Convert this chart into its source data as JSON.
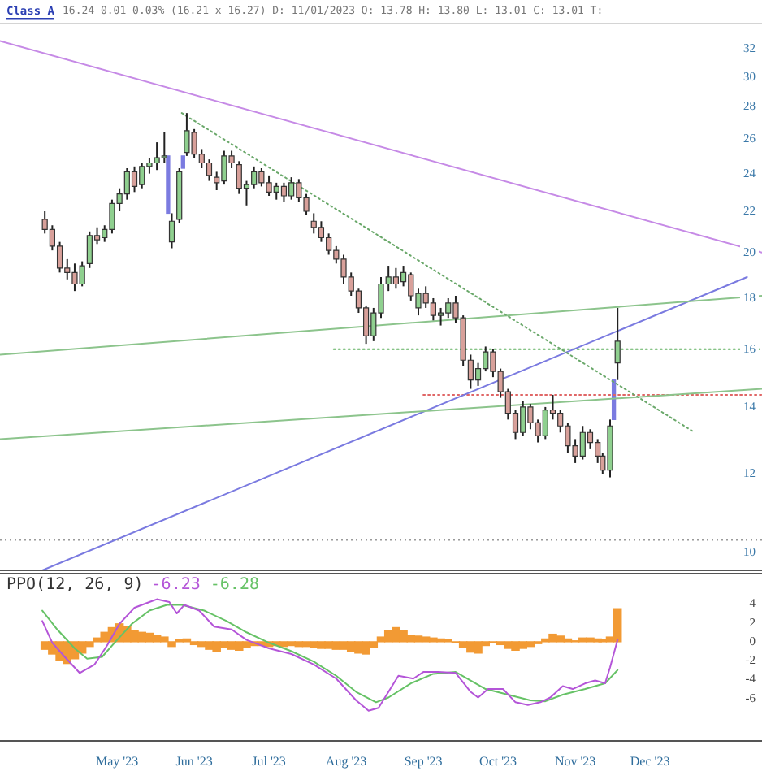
{
  "chart_data": [
    {
      "type": "candlestick",
      "title": "Class A",
      "subtitle": "16.24 0.01 0.03% (16.21 x 16.27) D: 11/01/2023 O: 13.78 H: 13.80 L: 13.01 C: 13.01 T:",
      "log": true,
      "tick_labels": "y",
      "xlim": [
        "2023-03-15",
        "2024-01-15"
      ],
      "ylim": [
        9.6,
        34
      ],
      "yticks": [
        10,
        12,
        14,
        16,
        18,
        20,
        22,
        24,
        26,
        28,
        30,
        32
      ],
      "ref_lines": [
        {
          "axis": "y",
          "value": 10.3,
          "color": "#9a9a9a",
          "line_style": "dotted"
        }
      ],
      "series": [
        {
          "x": [
            "2023-04-02",
            "2023-04-05",
            "2023-04-08",
            "2023-04-11",
            "2023-04-14",
            "2023-04-17",
            "2023-04-20",
            "2023-04-23",
            "2023-04-26",
            "2023-04-29",
            "2023-05-02",
            "2023-05-05",
            "2023-05-08",
            "2023-05-11",
            "2023-05-14",
            "2023-05-17",
            "2023-05-20",
            "2023-05-23",
            "2023-05-26",
            "2023-05-29",
            "2023-06-01",
            "2023-06-04",
            "2023-06-07",
            "2023-06-10",
            "2023-06-13",
            "2023-06-16",
            "2023-06-19",
            "2023-06-22",
            "2023-06-25",
            "2023-06-28",
            "2023-07-01",
            "2023-07-04",
            "2023-07-07",
            "2023-07-10",
            "2023-07-13",
            "2023-07-16",
            "2023-07-19",
            "2023-07-22",
            "2023-07-25",
            "2023-07-28",
            "2023-07-31",
            "2023-08-03",
            "2023-08-06",
            "2023-08-09",
            "2023-08-12",
            "2023-08-15",
            "2023-08-18",
            "2023-08-21",
            "2023-08-24",
            "2023-08-27",
            "2023-08-30",
            "2023-09-02",
            "2023-09-05",
            "2023-09-08",
            "2023-09-11",
            "2023-09-14",
            "2023-09-17",
            "2023-09-20",
            "2023-09-23",
            "2023-09-26",
            "2023-09-29",
            "2023-10-02",
            "2023-10-05",
            "2023-10-08",
            "2023-10-11",
            "2023-10-14",
            "2023-10-17",
            "2023-10-20",
            "2023-10-23",
            "2023-10-26",
            "2023-10-29",
            "2023-11-01",
            "2023-11-04",
            "2023-11-07",
            "2023-11-10",
            "2023-11-12",
            "2023-11-15",
            "2023-11-18"
          ],
          "ohlc": [
            [
              21.6,
              22.0,
              20.9,
              21.1
            ],
            [
              21.1,
              21.3,
              20.1,
              20.3
            ],
            [
              20.3,
              20.5,
              19.1,
              19.3
            ],
            [
              19.3,
              19.7,
              18.8,
              19.1
            ],
            [
              19.1,
              19.5,
              18.3,
              18.6
            ],
            [
              18.6,
              19.6,
              18.5,
              19.4
            ],
            [
              19.5,
              21.0,
              19.3,
              20.8
            ],
            [
              20.8,
              21.2,
              20.4,
              20.6
            ],
            [
              20.7,
              21.3,
              20.5,
              21.1
            ],
            [
              21.1,
              22.6,
              20.9,
              22.4
            ],
            [
              22.4,
              23.2,
              22.0,
              22.9
            ],
            [
              22.9,
              24.3,
              22.6,
              24.1
            ],
            [
              24.1,
              24.4,
              23.0,
              23.3
            ],
            [
              23.4,
              24.6,
              23.2,
              24.4
            ],
            [
              24.4,
              24.9,
              24.0,
              24.6
            ],
            [
              24.6,
              25.8,
              24.2,
              24.9
            ],
            [
              24.9,
              26.4,
              24.6,
              25.0
            ],
            [
              20.5,
              21.9,
              20.2,
              21.5
            ],
            [
              21.6,
              24.3,
              21.4,
              24.1
            ],
            [
              25.2,
              27.6,
              25.0,
              26.5
            ],
            [
              26.4,
              26.6,
              24.9,
              25.1
            ],
            [
              25.1,
              25.4,
              24.3,
              24.6
            ],
            [
              24.6,
              24.8,
              23.6,
              23.9
            ],
            [
              23.8,
              24.1,
              23.1,
              23.5
            ],
            [
              23.6,
              25.3,
              23.4,
              25.0
            ],
            [
              25.0,
              25.3,
              24.3,
              24.6
            ],
            [
              24.5,
              24.7,
              22.9,
              23.2
            ],
            [
              23.2,
              23.6,
              22.3,
              23.4
            ],
            [
              23.4,
              24.4,
              23.2,
              24.1
            ],
            [
              24.1,
              24.3,
              23.3,
              23.5
            ],
            [
              23.5,
              23.9,
              22.8,
              23.0
            ],
            [
              23.0,
              23.5,
              22.6,
              23.3
            ],
            [
              23.3,
              23.5,
              22.5,
              22.8
            ],
            [
              22.8,
              23.8,
              22.6,
              23.5
            ],
            [
              23.5,
              23.7,
              22.5,
              22.7
            ],
            [
              22.7,
              22.9,
              21.8,
              22.0
            ],
            [
              21.5,
              21.9,
              20.9,
              21.2
            ],
            [
              21.2,
              21.5,
              20.5,
              20.7
            ],
            [
              20.7,
              20.9,
              19.9,
              20.1
            ],
            [
              20.1,
              20.3,
              19.5,
              19.7
            ],
            [
              19.7,
              19.9,
              18.6,
              18.9
            ],
            [
              18.9,
              19.1,
              18.1,
              18.3
            ],
            [
              18.3,
              18.4,
              17.4,
              17.6
            ],
            [
              17.6,
              17.7,
              16.2,
              16.5
            ],
            [
              16.5,
              17.6,
              16.3,
              17.4
            ],
            [
              17.4,
              18.9,
              17.2,
              18.6
            ],
            [
              18.6,
              19.4,
              18.3,
              18.9
            ],
            [
              18.9,
              19.3,
              18.4,
              18.6
            ],
            [
              18.7,
              19.4,
              18.5,
              19.1
            ],
            [
              19.0,
              19.1,
              17.9,
              18.1
            ],
            [
              17.6,
              18.4,
              17.3,
              18.2
            ],
            [
              18.2,
              18.5,
              17.6,
              17.8
            ],
            [
              17.8,
              18.0,
              17.1,
              17.3
            ],
            [
              17.3,
              17.6,
              16.9,
              17.4
            ],
            [
              17.4,
              18.0,
              17.2,
              17.8
            ],
            [
              17.8,
              18.1,
              17.0,
              17.2
            ],
            [
              17.2,
              17.3,
              15.4,
              15.6
            ],
            [
              15.6,
              15.8,
              14.6,
              14.9
            ],
            [
              14.9,
              15.5,
              14.7,
              15.3
            ],
            [
              15.3,
              16.1,
              15.2,
              15.9
            ],
            [
              15.9,
              16.0,
              15.0,
              15.2
            ],
            [
              15.2,
              15.3,
              14.3,
              14.5
            ],
            [
              14.5,
              14.6,
              13.6,
              13.8
            ],
            [
              13.8,
              13.9,
              13.0,
              13.2
            ],
            [
              13.2,
              14.2,
              13.1,
              14.0
            ],
            [
              14.0,
              14.1,
              13.3,
              13.5
            ],
            [
              13.5,
              13.6,
              12.9,
              13.1
            ],
            [
              13.1,
              14.0,
              13.0,
              13.9
            ],
            [
              13.9,
              14.4,
              13.6,
              13.8
            ],
            [
              13.8,
              13.9,
              13.2,
              13.4
            ],
            [
              13.4,
              13.5,
              12.6,
              12.8
            ],
            [
              12.8,
              13.0,
              12.3,
              12.5
            ],
            [
              12.5,
              13.4,
              12.4,
              13.2
            ],
            [
              13.2,
              13.3,
              12.7,
              12.9
            ],
            [
              12.9,
              13.0,
              12.3,
              12.5
            ],
            [
              12.5,
              12.6,
              12.0,
              12.1
            ],
            [
              12.1,
              13.6,
              11.9,
              13.4
            ],
            [
              15.5,
              17.6,
              14.9,
              16.3
            ]
          ],
          "colors": [
            "#d8a09a",
            "#d8a09a",
            "#d8a09a",
            "#d8a09a",
            "#d8a09a",
            "#8fd08f",
            "#8fd08f",
            "#d8a09a",
            "#8fd08f",
            "#8fd08f",
            "#8fd08f",
            "#8fd08f",
            "#d8a09a",
            "#8fd08f",
            "#8fd08f",
            "#8fd08f",
            "#8fd08f",
            "#8fd08f",
            "#8fd08f",
            "#8fd08f",
            "#d8a09a",
            "#d8a09a",
            "#d8a09a",
            "#d8a09a",
            "#8fd08f",
            "#d8a09a",
            "#d8a09a",
            "#8fd08f",
            "#8fd08f",
            "#d8a09a",
            "#d8a09a",
            "#8fd08f",
            "#d8a09a",
            "#8fd08f",
            "#d8a09a",
            "#d8a09a",
            "#d8a09a",
            "#d8a09a",
            "#d8a09a",
            "#d8a09a",
            "#d8a09a",
            "#d8a09a",
            "#d8a09a",
            "#d8a09a",
            "#8fd08f",
            "#8fd08f",
            "#8fd08f",
            "#d8a09a",
            "#8fd08f",
            "#d8a09a",
            "#8fd08f",
            "#d8a09a",
            "#d8a09a",
            "#8fd08f",
            "#8fd08f",
            "#d8a09a",
            "#d8a09a",
            "#d8a09a",
            "#8fd08f",
            "#8fd08f",
            "#d8a09a",
            "#d8a09a",
            "#d8a09a",
            "#d8a09a",
            "#8fd08f",
            "#d8a09a",
            "#d8a09a",
            "#8fd08f",
            "#d8a09a",
            "#d8a09a",
            "#d8a09a",
            "#d8a09a",
            "#8fd08f",
            "#d8a09a",
            "#d8a09a",
            "#d8a09a",
            "#8fd08f",
            "#8fd08f"
          ]
        },
        {
          "type": "bar",
          "color": "#7b7be0",
          "x": [
            "2023-05-21T12:00",
            "2023-05-27T12:00",
            "2023-11-16T12:00"
          ],
          "base": [
            21.9,
            24.3,
            13.6
          ],
          "values": [
            3.1,
            0.7,
            1.3
          ]
        },
        {
          "type": "line",
          "color": "#c68ae6",
          "x": [
            "2023-03-15",
            "2024-01-15"
          ],
          "values": [
            32.6,
            20.0
          ]
        },
        {
          "type": "line",
          "color": "#6aa86a",
          "line_style": "dotted",
          "x": [
            "2023-05-27",
            "2023-12-19"
          ],
          "values": [
            27.6,
            13.2
          ]
        },
        {
          "type": "line",
          "color": "#8cc48c",
          "x": [
            "2023-03-15",
            "2024-01-15"
          ],
          "values": [
            15.8,
            18.1
          ]
        },
        {
          "type": "line",
          "color": "#8cc48c",
          "x": [
            "2023-03-15",
            "2024-01-15"
          ],
          "values": [
            13.0,
            14.6
          ]
        },
        {
          "type": "line",
          "color": "#7a7ae0",
          "x": [
            "2023-04-01",
            "2024-01-09"
          ],
          "values": [
            9.6,
            18.9
          ]
        },
        {
          "type": "line",
          "color": "#5fb05f",
          "line_style": "dotted",
          "x": [
            "2023-07-27",
            "2024-01-15"
          ],
          "values": [
            16.0,
            16.0
          ]
        },
        {
          "type": "line",
          "color": "#e06666",
          "line_style": "dotted",
          "x": [
            "2023-09-01",
            "2024-01-15"
          ],
          "values": [
            14.4,
            14.4
          ]
        }
      ]
    },
    {
      "type": "line",
      "title": "PPO(12, 26, 9)",
      "annotations": [
        "-6.23",
        "-6.28"
      ],
      "xlim": [
        "2023-03-15",
        "2024-01-15"
      ],
      "xticks": [
        {
          "value": "2023-05-01",
          "label": "May '23"
        },
        {
          "value": "2023-06-01",
          "label": "Jun '23"
        },
        {
          "value": "2023-07-01",
          "label": "Jul '23"
        },
        {
          "value": "2023-08-01",
          "label": "Aug '23"
        },
        {
          "value": "2023-09-01",
          "label": "Sep '23"
        },
        {
          "value": "2023-10-01",
          "label": "Oct '23"
        },
        {
          "value": "2023-11-01",
          "label": "Nov '23"
        },
        {
          "value": "2023-12-01",
          "label": "Dec '23"
        }
      ],
      "ylim": [
        -10.5,
        7.3
      ],
      "yticks": [
        -6,
        -4,
        -2,
        0,
        2,
        4
      ],
      "series": [
        {
          "color": "#b455d8",
          "x": [
            "2023-04-01",
            "2023-04-05",
            "2023-04-10",
            "2023-04-16",
            "2023-04-22",
            "2023-04-27",
            "2023-05-02",
            "2023-05-08",
            "2023-05-14",
            "2023-05-17",
            "2023-05-22",
            "2023-05-25",
            "2023-05-28",
            "2023-06-03",
            "2023-06-09",
            "2023-06-16",
            "2023-06-22",
            "2023-07-01",
            "2023-07-10",
            "2023-07-19",
            "2023-07-28",
            "2023-08-05",
            "2023-08-10",
            "2023-08-14",
            "2023-08-18",
            "2023-08-22",
            "2023-08-28",
            "2023-09-01",
            "2023-09-07",
            "2023-09-14",
            "2023-09-20",
            "2023-09-23",
            "2023-09-27",
            "2023-10-03",
            "2023-10-08",
            "2023-10-13",
            "2023-10-18",
            "2023-10-22",
            "2023-10-27",
            "2023-10-31",
            "2023-11-05",
            "2023-11-09",
            "2023-11-13",
            "2023-11-15",
            "2023-11-18"
          ],
          "values": [
            2.2,
            -0.1,
            -1.6,
            -3.3,
            -2.4,
            -0.4,
            1.9,
            3.6,
            4.2,
            4.5,
            4.2,
            3.0,
            3.9,
            3.3,
            1.6,
            1.3,
            0.2,
            -0.7,
            -1.3,
            -2.4,
            -3.9,
            -6.2,
            -7.3,
            -7.0,
            -5.3,
            -3.6,
            -3.9,
            -3.2,
            -3.2,
            -3.3,
            -5.3,
            -5.9,
            -5.0,
            -5.0,
            -6.4,
            -6.7,
            -6.4,
            -5.9,
            -4.7,
            -5.0,
            -4.4,
            -4.1,
            -4.4,
            -2.7,
            0.2
          ]
        },
        {
          "color": "#66c266",
          "x": [
            "2023-04-01",
            "2023-04-07",
            "2023-04-14",
            "2023-04-19",
            "2023-04-25",
            "2023-04-30",
            "2023-05-07",
            "2023-05-14",
            "2023-05-21",
            "2023-05-27",
            "2023-06-05",
            "2023-06-14",
            "2023-06-22",
            "2023-07-01",
            "2023-07-10",
            "2023-07-19",
            "2023-07-28",
            "2023-08-05",
            "2023-08-13",
            "2023-08-18",
            "2023-08-27",
            "2023-09-05",
            "2023-09-14",
            "2023-09-20",
            "2023-09-26",
            "2023-10-05",
            "2023-10-14",
            "2023-10-20",
            "2023-10-27",
            "2023-11-05",
            "2023-11-13",
            "2023-11-18"
          ],
          "values": [
            3.3,
            1.3,
            -0.7,
            -1.8,
            -1.6,
            -0.1,
            1.9,
            3.3,
            3.9,
            3.9,
            3.3,
            2.2,
            1.0,
            -0.1,
            -1.0,
            -2.1,
            -3.6,
            -5.3,
            -6.4,
            -5.9,
            -4.4,
            -3.4,
            -3.2,
            -4.1,
            -5.0,
            -5.6,
            -6.2,
            -6.3,
            -5.6,
            -5.0,
            -4.4,
            -3.0
          ]
        },
        {
          "type": "bar",
          "color": "#f29a34",
          "x": [
            "2023-04-02",
            "2023-04-05",
            "2023-04-08",
            "2023-04-11",
            "2023-04-14",
            "2023-04-17",
            "2023-04-20",
            "2023-04-23",
            "2023-04-26",
            "2023-04-29",
            "2023-05-02",
            "2023-05-05",
            "2023-05-08",
            "2023-05-11",
            "2023-05-14",
            "2023-05-17",
            "2023-05-20",
            "2023-05-23",
            "2023-05-26",
            "2023-05-29",
            "2023-06-01",
            "2023-06-04",
            "2023-06-07",
            "2023-06-10",
            "2023-06-13",
            "2023-06-16",
            "2023-06-19",
            "2023-06-22",
            "2023-06-25",
            "2023-06-28",
            "2023-07-01",
            "2023-07-04",
            "2023-07-07",
            "2023-07-10",
            "2023-07-13",
            "2023-07-16",
            "2023-07-19",
            "2023-07-22",
            "2023-07-25",
            "2023-07-28",
            "2023-07-31",
            "2023-08-03",
            "2023-08-06",
            "2023-08-09",
            "2023-08-12",
            "2023-08-15",
            "2023-08-18",
            "2023-08-21",
            "2023-08-24",
            "2023-08-27",
            "2023-08-30",
            "2023-09-02",
            "2023-09-05",
            "2023-09-08",
            "2023-09-11",
            "2023-09-14",
            "2023-09-17",
            "2023-09-20",
            "2023-09-23",
            "2023-09-26",
            "2023-09-29",
            "2023-10-02",
            "2023-10-05",
            "2023-10-08",
            "2023-10-11",
            "2023-10-14",
            "2023-10-17",
            "2023-10-20",
            "2023-10-23",
            "2023-10-26",
            "2023-10-29",
            "2023-11-01",
            "2023-11-04",
            "2023-11-07",
            "2023-11-10",
            "2023-11-12",
            "2023-11-15",
            "2023-11-18"
          ],
          "values": [
            -0.8,
            -1.3,
            -2.0,
            -2.3,
            -1.8,
            -1.2,
            -0.5,
            0.4,
            1.0,
            1.5,
            1.9,
            1.6,
            1.2,
            1.0,
            0.9,
            0.7,
            0.5,
            -0.5,
            0.2,
            0.3,
            -0.3,
            -0.5,
            -0.8,
            -1.0,
            -0.6,
            -0.8,
            -0.9,
            -0.6,
            -0.4,
            -0.4,
            -0.5,
            -0.4,
            -0.5,
            -0.4,
            -0.5,
            -0.5,
            -0.6,
            -0.7,
            -0.7,
            -0.8,
            -0.8,
            -1.0,
            -1.2,
            -1.3,
            -0.6,
            0.5,
            1.2,
            1.5,
            1.2,
            0.7,
            0.6,
            0.5,
            0.4,
            0.3,
            0.2,
            -0.1,
            -0.6,
            -1.1,
            -1.2,
            -0.4,
            -0.1,
            -0.3,
            -0.7,
            -0.9,
            -0.7,
            -0.5,
            -0.2,
            0.3,
            0.8,
            0.6,
            0.3,
            0.1,
            0.4,
            0.4,
            0.3,
            0.2,
            0.5,
            3.5
          ]
        }
      ]
    }
  ]
}
